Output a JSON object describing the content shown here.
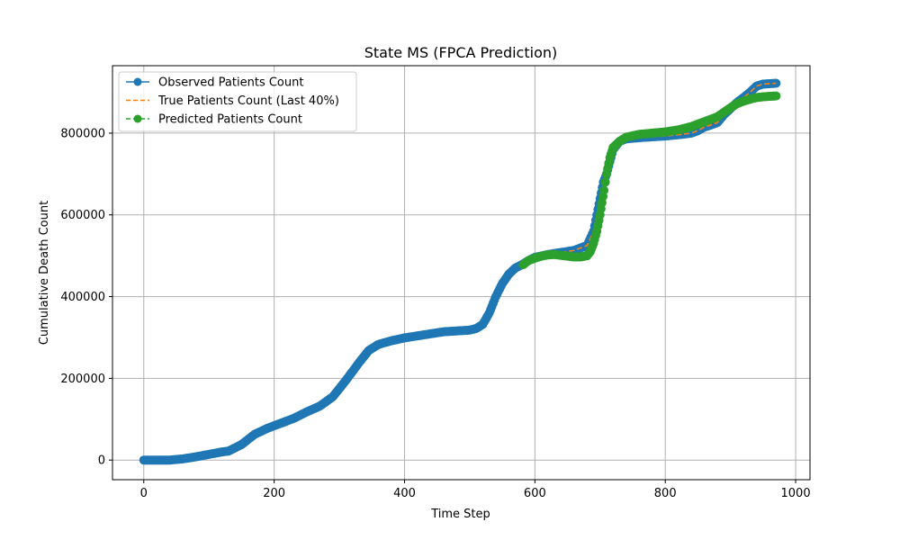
{
  "chart_data": {
    "type": "line",
    "title": "State MS (FPCA Prediction)",
    "xlabel": "Time Step",
    "ylabel": "Cumulative Death Count",
    "xlim": [
      -48,
      1022
    ],
    "ylim": [
      -48000,
      965000
    ],
    "xticks": [
      0,
      200,
      400,
      600,
      800,
      1000
    ],
    "yticks": [
      0,
      200000,
      400000,
      600000,
      800000
    ],
    "xtick_labels": [
      "0",
      "200",
      "400",
      "600",
      "800",
      "1000"
    ],
    "ytick_labels": [
      "0",
      "200000",
      "400000",
      "600000",
      "800000"
    ],
    "grid": true,
    "legend_position": "top-left",
    "series": [
      {
        "name": "Observed Patients Count",
        "color": "#1f77b4",
        "style": "solid-marker",
        "x": [
          0,
          20,
          40,
          60,
          80,
          100,
          120,
          130,
          150,
          170,
          190,
          210,
          230,
          250,
          270,
          290,
          310,
          330,
          345,
          360,
          380,
          400,
          420,
          440,
          460,
          480,
          500,
          510,
          520,
          530,
          540,
          550,
          560,
          570,
          580,
          590,
          600,
          620,
          640,
          660,
          680,
          690,
          695,
          700,
          705,
          710,
          715,
          720,
          730,
          740,
          760,
          780,
          800,
          820,
          840,
          850,
          860,
          870,
          880,
          890,
          900,
          910,
          920,
          930,
          940,
          950,
          960,
          970
        ],
        "y": [
          0,
          0,
          0,
          3000,
          8000,
          14000,
          20000,
          22000,
          38000,
          63000,
          78000,
          90000,
          102000,
          118000,
          132000,
          155000,
          195000,
          238000,
          268000,
          283000,
          292000,
          299000,
          304000,
          309000,
          314000,
          316000,
          318000,
          322000,
          332000,
          360000,
          400000,
          432000,
          455000,
          470000,
          478000,
          488000,
          496000,
          503000,
          508000,
          513000,
          525000,
          560000,
          600000,
          640000,
          680000,
          700000,
          730000,
          760000,
          780000,
          786000,
          789000,
          791000,
          793000,
          796000,
          800000,
          806000,
          815000,
          820000,
          826000,
          845000,
          860000,
          875000,
          887000,
          900000,
          915000,
          920000,
          921000,
          922000
        ]
      },
      {
        "name": "True Patients Count (Last 40%)",
        "color": "#ff7f0e",
        "style": "dashed",
        "x": [
          582,
          600,
          620,
          640,
          660,
          680,
          690,
          695,
          700,
          705,
          710,
          715,
          720,
          730,
          740,
          760,
          780,
          800,
          820,
          840,
          850,
          860,
          870,
          880,
          890,
          900,
          910,
          920,
          930,
          940,
          950,
          960,
          970
        ],
        "y": [
          478000,
          496000,
          503000,
          508000,
          513000,
          525000,
          560000,
          600000,
          640000,
          680000,
          700000,
          730000,
          760000,
          780000,
          786000,
          789000,
          791000,
          793000,
          796000,
          800000,
          806000,
          815000,
          820000,
          826000,
          845000,
          860000,
          875000,
          887000,
          900000,
          915000,
          920000,
          921000,
          922000
        ]
      },
      {
        "name": "Predicted Patients Count",
        "color": "#2ca02c",
        "style": "dashed-marker",
        "x": [
          582,
          590,
          600,
          610,
          620,
          630,
          640,
          650,
          660,
          670,
          680,
          685,
          690,
          695,
          700,
          703,
          706,
          710,
          715,
          720,
          730,
          740,
          760,
          780,
          800,
          820,
          840,
          860,
          880,
          890,
          900,
          910,
          920,
          930,
          940,
          950,
          960,
          970
        ],
        "y": [
          478000,
          488000,
          494000,
          499000,
          502000,
          503000,
          501000,
          499000,
          497000,
          497000,
          500000,
          510000,
          530000,
          560000,
          600000,
          630000,
          660000,
          700000,
          740000,
          765000,
          780000,
          790000,
          797000,
          800000,
          803000,
          808000,
          816000,
          828000,
          840000,
          851000,
          862000,
          872000,
          878000,
          883000,
          887000,
          889000,
          890000,
          891000
        ]
      }
    ]
  }
}
